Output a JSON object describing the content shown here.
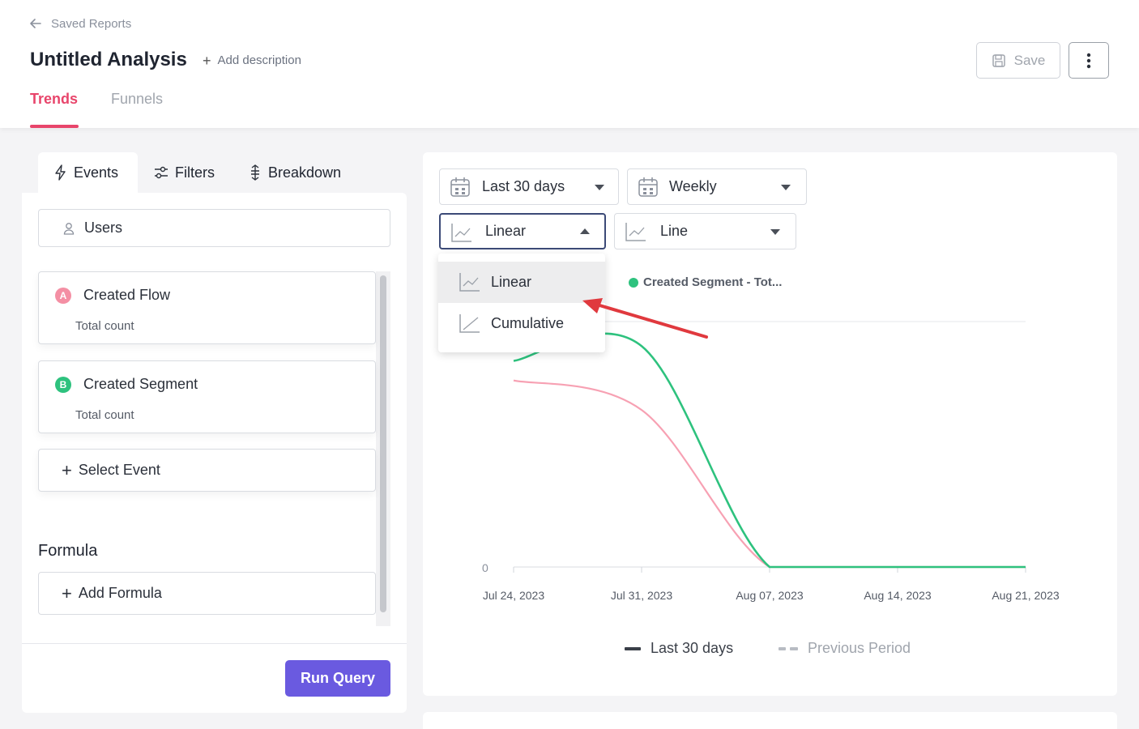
{
  "header": {
    "back_label": "Saved Reports",
    "title": "Untitled Analysis",
    "add_description": "Add description",
    "save_label": "Save",
    "tabs": [
      {
        "label": "Trends",
        "active": true
      },
      {
        "label": "Funnels",
        "active": false
      }
    ]
  },
  "left_panel": {
    "tabs": [
      {
        "label": "Events",
        "icon": "bolt-icon"
      },
      {
        "label": "Filters",
        "icon": "sliders-icon"
      },
      {
        "label": "Breakdown",
        "icon": "breakdown-icon"
      }
    ],
    "users_label": "Users",
    "events": [
      {
        "badge": "A",
        "name": "Created Flow",
        "metric": "Total count",
        "color": "#f48fa4"
      },
      {
        "badge": "B",
        "name": "Created Segment",
        "metric": "Total count",
        "color": "#2ec27e"
      }
    ],
    "select_event": "Select Event",
    "formula_heading": "Formula",
    "add_formula": "Add Formula",
    "run_query": "Run Query"
  },
  "controls": {
    "date_range": "Last 30 days",
    "interval": "Weekly",
    "scale": "Linear",
    "chart_type": "Line",
    "scale_options": [
      "Linear",
      "Cumulative"
    ],
    "scale_selected": "Linear"
  },
  "chart_data": {
    "type": "line",
    "categories": [
      "Jul 24, 2023",
      "Jul 31, 2023",
      "Aug 07, 2023",
      "Aug 14, 2023",
      "Aug 21, 2023"
    ],
    "y_tick_label": "0",
    "series": [
      {
        "name": "Created Segment - Tot...",
        "color": "#2ec27e",
        "values": [
          21,
          22.5,
          0,
          0,
          0
        ]
      },
      {
        "color": "#f7a1b3",
        "values": [
          19,
          16,
          0,
          0,
          0
        ]
      }
    ],
    "legend": [
      {
        "label": "Last 30 days",
        "style": "solid"
      },
      {
        "label": "Previous Period",
        "style": "dashed"
      }
    ],
    "ylim": [
      0,
      25
    ]
  },
  "colors": {
    "accent": "#e8456b",
    "primary_button": "#6a5ae0"
  }
}
